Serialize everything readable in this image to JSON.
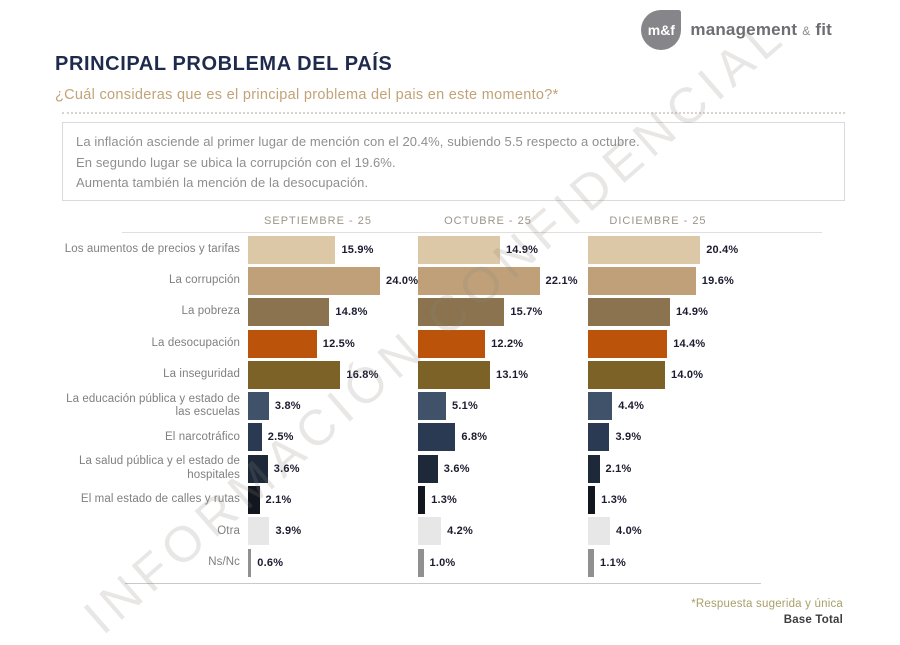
{
  "logo": {
    "abbr": "m&f",
    "name": "management",
    "amp": "&",
    "suffix": "fit"
  },
  "header": {
    "title": "PRINCIPAL PROBLEMA DEL PAÍS",
    "subtitle": "¿Cuál consideras que es el principal problema del pais en este momento?*"
  },
  "summary_box": {
    "line1": "La inflación asciende al primer lugar de mención con el 20.4%, subiendo 5.5 respecto a octubre.",
    "line2": "En segundo lugar se ubica la corrupción con el 19.6%.",
    "line3": "Aumenta también la mención de la desocupación."
  },
  "watermark": "INFORMACIÓN CONFIDENCIAL",
  "footer": {
    "note": "*Respuesta sugerida y única",
    "base": "Base Total"
  },
  "chart_data": {
    "type": "bar",
    "orientation": "horizontal",
    "value_suffix": "%",
    "xmax": 25,
    "columns": [
      "SEPTIEMBRE - 25",
      "OCTUBRE - 25",
      "DICIEMBRE - 25"
    ],
    "rows": [
      {
        "label": "Los aumentos de precios y tarifas",
        "color": "#dcc7a6",
        "values": [
          15.9,
          14.9,
          20.4
        ]
      },
      {
        "label": "La corrupción",
        "color": "#bfa078",
        "values": [
          24.0,
          22.1,
          19.6
        ]
      },
      {
        "label": "La pobreza",
        "color": "#8a734e",
        "values": [
          14.8,
          15.7,
          14.9
        ]
      },
      {
        "label": "La desocupación",
        "color": "#bb540a",
        "values": [
          12.5,
          12.2,
          14.4
        ]
      },
      {
        "label": "La inseguridad",
        "color": "#7d6227",
        "values": [
          16.8,
          13.1,
          14.0
        ]
      },
      {
        "label": "La educación pública y estado de las escuelas",
        "color": "#3f5269",
        "values": [
          3.8,
          5.1,
          4.4
        ]
      },
      {
        "label": "El narcotráfico",
        "color": "#2b3a53",
        "values": [
          2.5,
          6.8,
          3.9
        ]
      },
      {
        "label": "La salud pública y el estado de hospitales",
        "color": "#1d2939",
        "values": [
          3.6,
          3.6,
          2.1
        ]
      },
      {
        "label": "El mal estado de calles y rutas",
        "color": "#12161f",
        "values": [
          2.1,
          1.3,
          1.3
        ]
      },
      {
        "label": "Otra",
        "color": "#e7e7e7",
        "values": [
          3.9,
          4.2,
          4.0
        ]
      },
      {
        "label": "Ns/Nc",
        "color": "#909090",
        "values": [
          0.6,
          1.0,
          1.1
        ]
      }
    ]
  }
}
